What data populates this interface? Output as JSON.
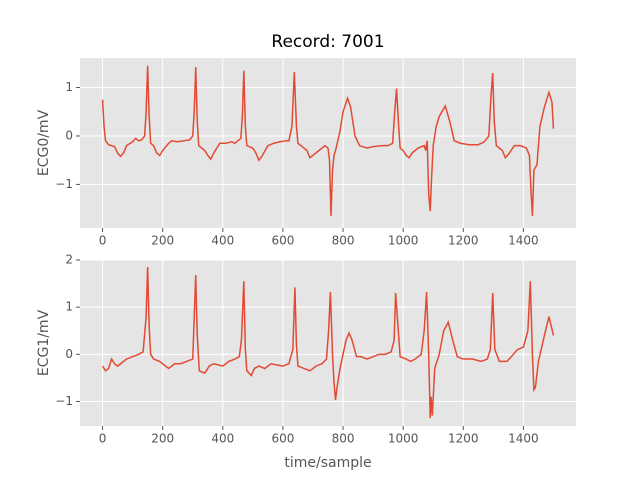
{
  "chart_data": [
    {
      "type": "line",
      "title": "Record: 7001",
      "ylabel": "ECG0/mV",
      "color": "#e24a33",
      "grid": true,
      "xlim": [
        -75,
        1575
      ],
      "xticks": [
        0,
        200,
        400,
        600,
        800,
        1000,
        1200,
        1400
      ],
      "ylim": [
        -1.9,
        1.61
      ],
      "yticks": [
        {
          "value": -1,
          "label": "−1"
        },
        0,
        1
      ],
      "x": [
        0,
        5,
        10,
        20,
        40,
        50,
        60,
        70,
        80,
        100,
        110,
        120,
        130,
        140,
        145,
        150,
        155,
        160,
        170,
        180,
        190,
        200,
        220,
        230,
        250,
        270,
        290,
        300,
        305,
        310,
        315,
        320,
        340,
        350,
        360,
        370,
        390,
        410,
        430,
        440,
        450,
        460,
        465,
        470,
        475,
        480,
        500,
        510,
        520,
        530,
        550,
        570,
        590,
        610,
        620,
        630,
        638,
        645,
        650,
        660,
        670,
        680,
        690,
        700,
        720,
        740,
        750,
        755,
        760,
        765,
        770,
        775,
        790,
        800,
        815,
        825,
        840,
        855,
        880,
        900,
        930,
        950,
        965,
        972,
        978,
        985,
        990,
        1000,
        1010,
        1020,
        1030,
        1050,
        1070,
        1075,
        1080,
        1085,
        1090,
        1095,
        1100,
        1110,
        1120,
        1140,
        1155,
        1170,
        1190,
        1220,
        1250,
        1270,
        1285,
        1293,
        1298,
        1303,
        1310,
        1330,
        1340,
        1350,
        1370,
        1390,
        1410,
        1420,
        1425,
        1430,
        1435,
        1445,
        1455,
        1470,
        1485,
        1495,
        1500
      ],
      "values": [
        0.75,
        0.2,
        -0.1,
        -0.18,
        -0.22,
        -0.35,
        -0.42,
        -0.35,
        -0.2,
        -0.12,
        -0.05,
        -0.1,
        -0.08,
        0.0,
        0.5,
        1.45,
        0.4,
        -0.15,
        -0.2,
        -0.35,
        -0.4,
        -0.3,
        -0.15,
        -0.1,
        -0.12,
        -0.1,
        -0.08,
        0.0,
        0.5,
        1.42,
        0.3,
        -0.2,
        -0.3,
        -0.4,
        -0.48,
        -0.35,
        -0.15,
        -0.15,
        -0.12,
        -0.15,
        -0.1,
        -0.05,
        0.4,
        1.35,
        0.2,
        -0.2,
        -0.25,
        -0.35,
        -0.5,
        -0.42,
        -0.2,
        -0.15,
        -0.12,
        -0.1,
        -0.1,
        0.2,
        1.32,
        0.2,
        -0.15,
        -0.2,
        -0.25,
        -0.3,
        -0.45,
        -0.4,
        -0.3,
        -0.2,
        -0.25,
        -0.5,
        -1.65,
        -0.7,
        -0.4,
        -0.3,
        0.1,
        0.5,
        0.78,
        0.6,
        0.0,
        -0.2,
        -0.25,
        -0.22,
        -0.2,
        -0.2,
        -0.15,
        0.5,
        0.98,
        0.2,
        -0.25,
        -0.3,
        -0.4,
        -0.45,
        -0.35,
        -0.25,
        -0.2,
        -0.3,
        -0.1,
        -1.2,
        -1.55,
        -0.8,
        -0.2,
        0.2,
        0.4,
        0.62,
        0.3,
        -0.1,
        -0.15,
        -0.18,
        -0.18,
        -0.12,
        0.0,
        0.9,
        1.3,
        0.3,
        -0.2,
        -0.3,
        -0.45,
        -0.38,
        -0.2,
        -0.2,
        -0.25,
        -0.4,
        -1.1,
        -1.65,
        -0.7,
        -0.6,
        0.2,
        0.6,
        0.9,
        0.7,
        0.15
      ]
    },
    {
      "type": "line",
      "xlabel": "time/sample",
      "ylabel": "ECG1/mV",
      "color": "#e24a33",
      "grid": true,
      "xlim": [
        -75,
        1575
      ],
      "xticks": [
        0,
        200,
        400,
        600,
        800,
        1000,
        1200,
        1400
      ],
      "ylim": [
        -1.52,
        2.0
      ],
      "yticks": [
        {
          "value": -1,
          "label": "−1"
        },
        0,
        1,
        2
      ],
      "x": [
        0,
        10,
        20,
        30,
        40,
        50,
        60,
        80,
        100,
        120,
        135,
        145,
        150,
        155,
        160,
        170,
        190,
        210,
        220,
        240,
        260,
        280,
        300,
        305,
        310,
        315,
        322,
        340,
        355,
        370,
        400,
        420,
        440,
        455,
        462,
        470,
        475,
        480,
        495,
        505,
        520,
        540,
        560,
        600,
        620,
        633,
        640,
        645,
        650,
        670,
        690,
        710,
        730,
        745,
        752,
        758,
        765,
        770,
        775,
        780,
        790,
        800,
        810,
        820,
        830,
        845,
        860,
        880,
        900,
        920,
        940,
        960,
        970,
        975,
        985,
        990,
        1010,
        1025,
        1040,
        1060,
        1070,
        1078,
        1085,
        1090,
        1093,
        1097,
        1105,
        1120,
        1135,
        1150,
        1165,
        1180,
        1200,
        1230,
        1260,
        1280,
        1290,
        1298,
        1305,
        1320,
        1345,
        1360,
        1380,
        1400,
        1415,
        1423,
        1430,
        1435,
        1440,
        1450,
        1470,
        1485,
        1500
      ],
      "values": [
        -0.25,
        -0.35,
        -0.3,
        -0.1,
        -0.2,
        -0.25,
        -0.2,
        -0.1,
        -0.05,
        0.0,
        0.05,
        0.8,
        1.85,
        0.6,
        0.0,
        -0.1,
        -0.15,
        -0.25,
        -0.3,
        -0.2,
        -0.2,
        -0.15,
        -0.1,
        0.8,
        1.68,
        0.4,
        -0.35,
        -0.4,
        -0.25,
        -0.2,
        -0.25,
        -0.15,
        -0.1,
        -0.05,
        0.3,
        1.55,
        0.1,
        -0.35,
        -0.45,
        -0.3,
        -0.25,
        -0.3,
        -0.2,
        -0.25,
        -0.2,
        0.1,
        1.42,
        0.2,
        -0.25,
        -0.3,
        -0.35,
        -0.25,
        -0.2,
        -0.1,
        0.5,
        1.32,
        0.0,
        -0.6,
        -0.97,
        -0.7,
        -0.3,
        0.0,
        0.3,
        0.45,
        0.3,
        -0.05,
        -0.05,
        -0.1,
        -0.05,
        0.0,
        0.0,
        0.05,
        0.3,
        1.3,
        0.4,
        -0.05,
        -0.1,
        -0.15,
        -0.1,
        0.0,
        0.5,
        1.32,
        0.0,
        -1.35,
        -0.9,
        -1.3,
        -0.3,
        0.0,
        0.5,
        0.68,
        0.3,
        -0.05,
        -0.1,
        -0.1,
        -0.15,
        -0.1,
        0.1,
        1.3,
        0.1,
        -0.15,
        -0.15,
        -0.05,
        0.1,
        0.15,
        0.5,
        1.55,
        0.0,
        -0.75,
        -0.7,
        -0.15,
        0.4,
        0.8,
        0.4
      ]
    }
  ]
}
